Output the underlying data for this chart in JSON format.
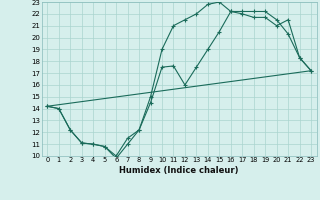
{
  "xlabel": "Humidex (Indice chaleur)",
  "xlim": [
    -0.5,
    23.5
  ],
  "ylim": [
    10,
    23
  ],
  "xticks": [
    0,
    1,
    2,
    3,
    4,
    5,
    6,
    7,
    8,
    9,
    10,
    11,
    12,
    13,
    14,
    15,
    16,
    17,
    18,
    19,
    20,
    21,
    22,
    23
  ],
  "yticks": [
    10,
    11,
    12,
    13,
    14,
    15,
    16,
    17,
    18,
    19,
    20,
    21,
    22,
    23
  ],
  "bg_color": "#d6efec",
  "grid_color": "#aad4cf",
  "line_color": "#1a6b5a",
  "line1_x": [
    0,
    1,
    2,
    3,
    4,
    5,
    6,
    7,
    8,
    9,
    10,
    11,
    12,
    13,
    14,
    15,
    16,
    17,
    18,
    19,
    20,
    21,
    22,
    23
  ],
  "line1_y": [
    14.2,
    14.0,
    12.2,
    11.1,
    11.0,
    10.8,
    10.0,
    11.5,
    12.2,
    14.5,
    17.5,
    17.6,
    16.0,
    17.5,
    19.0,
    20.5,
    22.2,
    22.0,
    21.7,
    21.7,
    21.0,
    21.5,
    18.3,
    17.2
  ],
  "line2_x": [
    0,
    1,
    2,
    3,
    4,
    5,
    6,
    7,
    8,
    9,
    10,
    11,
    12,
    13,
    14,
    15,
    16,
    17,
    18,
    19,
    20,
    21,
    22,
    23
  ],
  "line2_y": [
    14.2,
    14.0,
    12.2,
    11.1,
    11.0,
    10.8,
    9.8,
    11.0,
    12.2,
    15.0,
    19.0,
    21.0,
    21.5,
    22.0,
    22.8,
    23.0,
    22.2,
    22.2,
    22.2,
    22.2,
    21.5,
    20.3,
    18.3,
    17.2
  ],
  "line3_x": [
    0,
    23
  ],
  "line3_y": [
    14.2,
    17.2
  ]
}
